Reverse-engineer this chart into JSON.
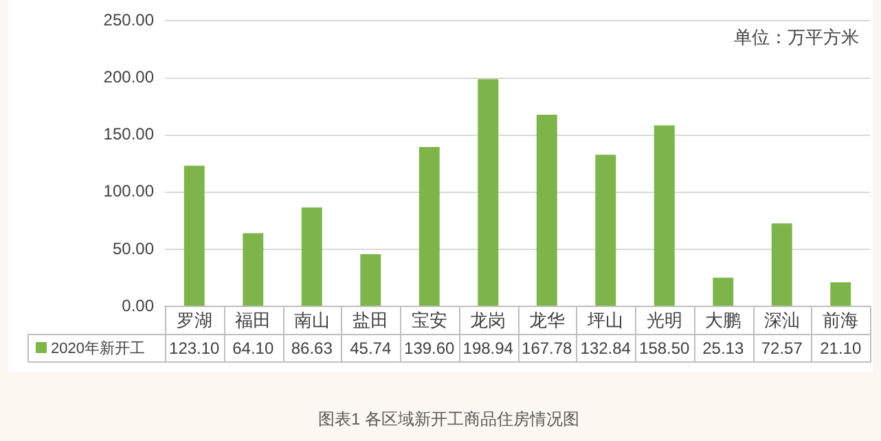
{
  "chart_data": {
    "type": "bar",
    "title": "图表1 各区域新开工商品住房情况图",
    "annotations": [
      "单位：万平方米"
    ],
    "categories": [
      "罗湖",
      "福田",
      "南山",
      "盐田",
      "宝安",
      "龙岗",
      "龙华",
      "坪山",
      "光明",
      "大鹏",
      "深汕",
      "前海"
    ],
    "series": [
      {
        "name": "2020年新开工",
        "color": "#7db54a",
        "values": [
          123.1,
          64.1,
          86.63,
          45.74,
          139.6,
          198.94,
          167.78,
          132.84,
          158.5,
          25.13,
          72.57,
          21.1
        ],
        "value_labels": [
          "123.10",
          "64.10",
          "86.63",
          "45.74",
          "139.60",
          "198.94",
          "167.78",
          "132.84",
          "158.50",
          "25.13",
          "72.57",
          "21.10"
        ]
      }
    ],
    "ylim": [
      0,
      250
    ],
    "yticks": [
      {
        "value": 0,
        "label": "0.00"
      },
      {
        "value": 50,
        "label": "50.00"
      },
      {
        "value": 100,
        "label": "100.00"
      },
      {
        "value": 150,
        "label": "150.00"
      },
      {
        "value": 200,
        "label": "200.00"
      },
      {
        "value": 250,
        "label": "250.00"
      }
    ],
    "grid": "y",
    "legend": "bottom"
  }
}
